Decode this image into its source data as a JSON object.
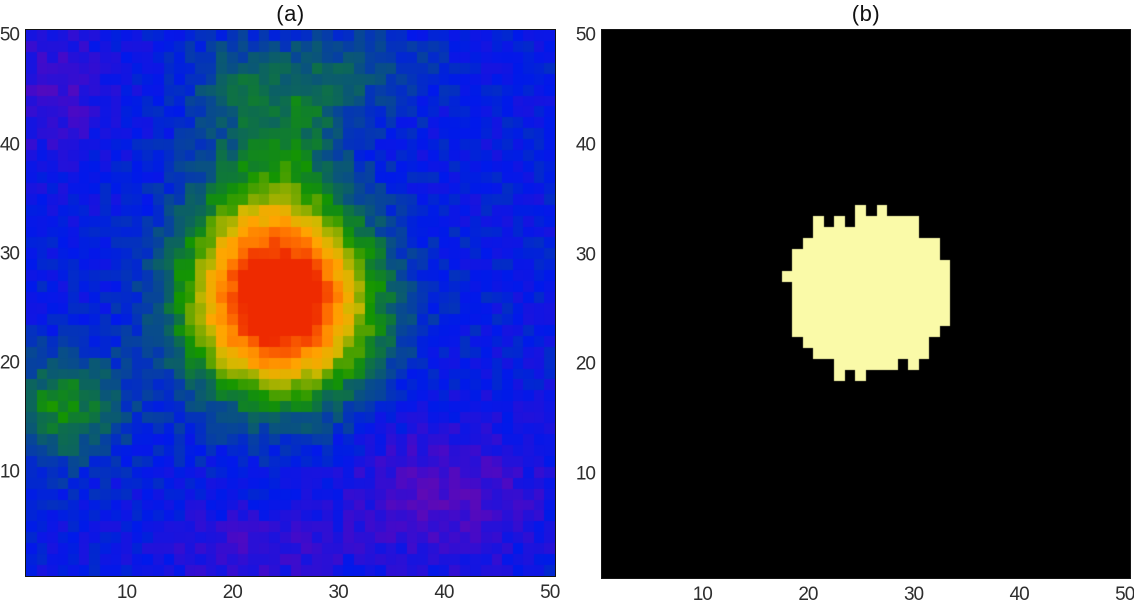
{
  "figure": {
    "background": "#ffffff",
    "tick_label_color": "#2e2e2e",
    "title_color": "#111111"
  },
  "chart_data": [
    {
      "panel": "a",
      "type": "heatmap",
      "title": "(a)",
      "grid_size": 50,
      "xlim": [
        0.5,
        50.5
      ],
      "ylim": [
        0.5,
        50.5
      ],
      "xticks": [
        10,
        20,
        30,
        40,
        50
      ],
      "yticks": [
        10,
        20,
        30,
        40,
        50
      ],
      "grid": false,
      "legend": "none",
      "render": "colormap",
      "colormap": {
        "name": "rainbow-jet-like",
        "stops": [
          [
            0.0,
            [
              115,
              10,
              165
            ]
          ],
          [
            0.1,
            [
              70,
              10,
              200
            ]
          ],
          [
            0.22,
            [
              0,
              25,
              235
            ]
          ],
          [
            0.5,
            [
              20,
              150,
              0
            ]
          ],
          [
            0.66,
            [
              210,
              185,
              0
            ]
          ],
          [
            0.76,
            [
              255,
              165,
              0
            ]
          ],
          [
            0.87,
            [
              255,
              115,
              0
            ]
          ],
          [
            1.0,
            [
              238,
              42,
              0
            ]
          ]
        ]
      },
      "field": {
        "background_level": 0.22,
        "noise_amplitude": 0.045,
        "seed": 42,
        "gaussians": [
          {
            "x": 24.5,
            "y": 25.5,
            "sx": 5.8,
            "sy": 5.7,
            "amp": 0.92,
            "label": "hot-spot-core"
          },
          {
            "x": 23.0,
            "y": 36.0,
            "sx": 4.5,
            "sy": 6.0,
            "amp": 0.18,
            "label": "green-plume-above-core"
          },
          {
            "x": 27.0,
            "y": 44.0,
            "sx": 3.0,
            "sy": 4.0,
            "amp": 0.13,
            "label": "green-streak-top"
          },
          {
            "x": 20.0,
            "y": 46.0,
            "sx": 3.0,
            "sy": 3.0,
            "amp": 0.12,
            "label": "green-patch-upper"
          },
          {
            "x": 33.0,
            "y": 47.0,
            "sx": 4.0,
            "sy": 3.0,
            "amp": 0.1,
            "label": "green-patch-top-right"
          },
          {
            "x": 4.0,
            "y": 16.0,
            "sx": 4.0,
            "sy": 3.5,
            "amp": 0.25,
            "label": "green-patch-left-edge"
          },
          {
            "x": 40.0,
            "y": 8.0,
            "sx": 6.5,
            "sy": 4.5,
            "amp": -0.14,
            "label": "purple-dip-bottom-right"
          },
          {
            "x": 3.5,
            "y": 45.0,
            "sx": 3.5,
            "sy": 4.5,
            "amp": -0.11,
            "label": "purple-dip-top-left"
          },
          {
            "x": 22.0,
            "y": 3.0,
            "sx": 6.0,
            "sy": 2.5,
            "amp": -0.1,
            "label": "purple-dip-bottom-center"
          }
        ]
      },
      "peak": {
        "x": 24.5,
        "y": 25.5,
        "value": 1.0
      },
      "description": "Noisy 50x50 intensity map, blue background with purple dips, green halo and red-orange Gaussian hot spot centered near (25,26)."
    },
    {
      "panel": "b",
      "type": "heatmap",
      "subtype": "binary-mask",
      "title": "(b)",
      "grid_size": 50,
      "xlim": [
        0.5,
        50.5
      ],
      "ylim": [
        0.5,
        50.5
      ],
      "xticks": [
        10,
        20,
        30,
        40,
        50
      ],
      "yticks": [
        10,
        20,
        30,
        40,
        50
      ],
      "grid": false,
      "legend": "none",
      "render": "threshold",
      "threshold": 0.58,
      "on_color": "#FAFAA8",
      "off_color": "#000000",
      "field": {
        "background_level": 0.0,
        "noise_amplitude": 0.07,
        "seed": 7,
        "gaussians": [
          {
            "x": 25.5,
            "y": 26.5,
            "sx": 7.5,
            "sy": 7.0,
            "amp": 1.0,
            "label": "segmented-region"
          }
        ]
      },
      "mask_extent": {
        "x": [
          18,
          34
        ],
        "y": [
          20,
          34
        ]
      },
      "description": "Binary segmentation mask of the hot spot: pale-yellow jagged blob centered near (25.5,26.5), radius ~7.5 cells, on black background."
    }
  ]
}
